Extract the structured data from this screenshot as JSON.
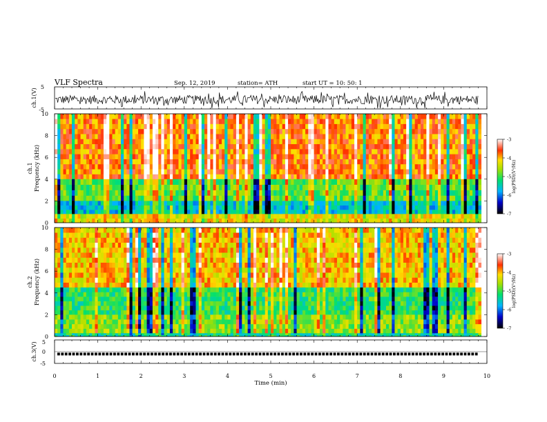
{
  "header": {
    "title": "VLF  Spectra",
    "date": "Sep. 12, 2019",
    "station": "station= ATH",
    "start": "start  UT  =    10: 50: 1"
  },
  "chart_data": [
    {
      "type": "line",
      "panel": "ch1-waveform",
      "ylabel": "ch.1(V)",
      "ylim": [
        -5,
        5
      ],
      "yticks": [
        "5",
        "-5"
      ],
      "xlim": [
        0,
        10
      ],
      "data_end_min": 9.8,
      "baseline_V": -0.8,
      "amplitude_V": 4.0
    },
    {
      "type": "heatmap",
      "panel": "ch1-spectrogram",
      "ylabel": "ch.1 Frequency (kHz)",
      "ylabel_line1": "ch.1",
      "ylabel_line2": "Frequency (kHz)",
      "ylim": [
        0,
        10
      ],
      "yticks": [
        "0",
        "2",
        "4",
        "6",
        "8",
        "10"
      ],
      "xlim": [
        0,
        10
      ],
      "colorbar": {
        "title": "log(PSD)(V²/Hz)",
        "range": [
          -7,
          -3
        ],
        "ticks": [
          "-3",
          "-4",
          "-5",
          "-6",
          "-7"
        ]
      },
      "bands": [
        {
          "name": "high",
          "from_kHz": 4,
          "to_kHz": 10,
          "level": -3.8
        },
        {
          "name": "mid",
          "from_kHz": 2,
          "to_kHz": 4,
          "level": -4.9
        },
        {
          "name": "low",
          "from_kHz": 0.8,
          "to_kHz": 2,
          "level": -5.6
        },
        {
          "name": "base",
          "from_kHz": 0,
          "to_kHz": 0.8,
          "level": -4.3
        }
      ]
    },
    {
      "type": "heatmap",
      "panel": "ch2-spectrogram",
      "ylabel": "ch.2 Frequency (kHz)",
      "ylabel_line1": "ch.2",
      "ylabel_line2": "Frequency (kHz)",
      "ylim": [
        0,
        10
      ],
      "yticks": [
        "0",
        "2",
        "4",
        "6",
        "8",
        "10"
      ],
      "xlim": [
        0,
        10
      ],
      "colorbar": {
        "title": "log(PSD)(V²/Hz)",
        "range": [
          -7,
          -3
        ],
        "ticks": [
          "-3",
          "-4",
          "-5",
          "-6",
          "-7"
        ]
      },
      "bands": [
        {
          "name": "high",
          "from_kHz": 4.5,
          "to_kHz": 10,
          "level": -4.1
        },
        {
          "name": "mid",
          "from_kHz": 2,
          "to_kHz": 4.5,
          "level": -5.1
        },
        {
          "name": "low",
          "from_kHz": 0.3,
          "to_kHz": 2,
          "level": -4.7
        },
        {
          "name": "base",
          "from_kHz": 0,
          "to_kHz": 0.3,
          "level": -5.3
        }
      ]
    },
    {
      "type": "line",
      "panel": "ch3-pulses",
      "ylabel": "ch.3(V)",
      "ylim": [
        -5,
        5
      ],
      "yticks": [
        "5",
        "0",
        "-5"
      ],
      "xlim": [
        0,
        10
      ],
      "level_V": -1,
      "data_end_min": 9.8,
      "xlabel": "Time  (min)",
      "xticks": [
        "0",
        "1",
        "2",
        "3",
        "4",
        "5",
        "6",
        "7",
        "8",
        "9",
        "10"
      ]
    }
  ]
}
